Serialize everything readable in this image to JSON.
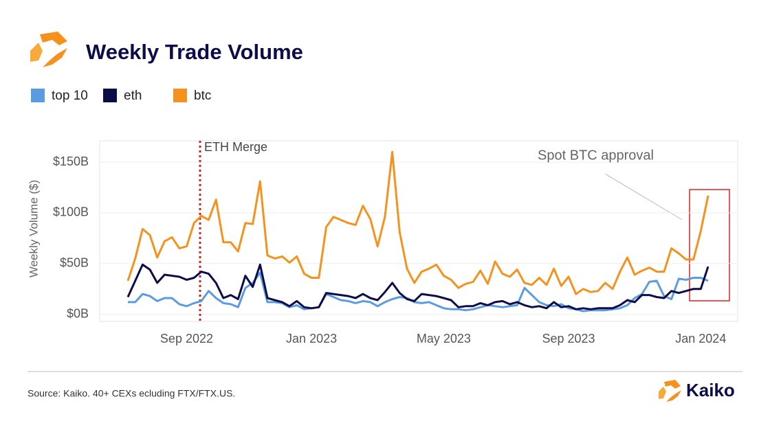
{
  "chart_data": {
    "type": "line",
    "title": "Weekly Trade Volume",
    "y_label": "Weekly Volume ($)",
    "categories": [
      null,
      null,
      null,
      null,
      null,
      null,
      null,
      null,
      "Sep 2022",
      null,
      null,
      null,
      null,
      null,
      null,
      null,
      null,
      null,
      null,
      null,
      null,
      null,
      null,
      null,
      null,
      "Jan 2023",
      null,
      null,
      null,
      null,
      null,
      null,
      null,
      null,
      null,
      null,
      null,
      null,
      null,
      null,
      null,
      null,
      null,
      "May 2023",
      null,
      null,
      null,
      null,
      null,
      null,
      null,
      null,
      null,
      null,
      null,
      null,
      null,
      null,
      null,
      null,
      "Sep 2023",
      null,
      null,
      null,
      null,
      null,
      null,
      null,
      null,
      null,
      null,
      null,
      null,
      null,
      null,
      null,
      null,
      null,
      "Jan 2024",
      null
    ],
    "series": [
      {
        "name": "top 10",
        "color": "#5b9be0",
        "values": [
          12,
          12,
          20,
          18,
          13,
          16,
          16,
          10,
          8,
          11,
          13,
          23,
          16,
          11,
          10,
          7,
          26,
          31,
          41,
          12,
          12,
          11,
          7,
          9,
          5,
          6,
          7,
          20,
          17,
          14,
          13,
          11,
          13,
          12,
          8,
          12,
          15,
          17,
          16,
          12,
          11,
          12,
          9,
          6,
          5,
          5,
          4,
          5,
          7,
          9,
          8,
          7,
          8,
          9,
          26,
          19,
          12,
          9,
          8,
          10,
          6,
          5,
          3,
          4,
          4,
          4,
          5,
          6,
          9,
          16,
          20,
          32,
          33,
          18,
          15,
          35,
          34,
          36,
          36,
          33
        ]
      },
      {
        "name": "eth",
        "color": "#0c0c4a",
        "values": [
          17,
          33,
          49,
          44,
          31,
          39,
          38,
          37,
          34,
          36,
          42,
          40,
          31,
          16,
          19,
          15,
          38,
          27,
          49,
          16,
          14,
          12,
          8,
          13,
          7,
          6,
          7,
          21,
          20,
          19,
          18,
          16,
          20,
          16,
          14,
          22,
          31,
          21,
          15,
          13,
          20,
          19,
          18,
          16,
          14,
          7,
          8,
          8,
          11,
          9,
          12,
          13,
          10,
          12,
          9,
          7,
          8,
          6,
          12,
          7,
          8,
          5,
          6,
          5,
          6,
          6,
          6,
          9,
          14,
          12,
          19,
          19,
          17,
          16,
          23,
          21,
          23,
          25,
          25,
          47
        ]
      },
      {
        "name": "btc",
        "color": "#f5921e",
        "values": [
          33,
          55,
          84,
          78,
          56,
          72,
          76,
          65,
          67,
          90,
          97,
          93,
          113,
          71,
          71,
          62,
          90,
          89,
          131,
          58,
          55,
          57,
          51,
          57,
          40,
          36,
          36,
          86,
          96,
          93,
          90,
          88,
          107,
          94,
          67,
          96,
          160,
          81,
          45,
          31,
          42,
          45,
          49,
          38,
          34,
          26,
          30,
          32,
          43,
          30,
          52,
          40,
          37,
          44,
          31,
          29,
          36,
          29,
          45,
          28,
          37,
          20,
          25,
          22,
          23,
          31,
          25,
          42,
          56,
          39,
          43,
          46,
          42,
          42,
          65,
          60,
          54,
          54,
          82,
          117
        ]
      }
    ],
    "ylim": [
      -7,
      171
    ],
    "yticks": [
      {
        "value": 0,
        "label": "$0B"
      },
      {
        "value": 50,
        "label": "$50B"
      },
      {
        "value": 100,
        "label": "$100B"
      },
      {
        "value": 150,
        "label": "$150B"
      }
    ],
    "grid": true,
    "legend": "top-left",
    "annotations": [
      "ETH Merge",
      "Spot BTC approval"
    ]
  },
  "footer": {
    "source": "Source: Kaiko. 40+ CEXs ecluding FTX/FTX.US.",
    "brand": "Kaiko"
  }
}
